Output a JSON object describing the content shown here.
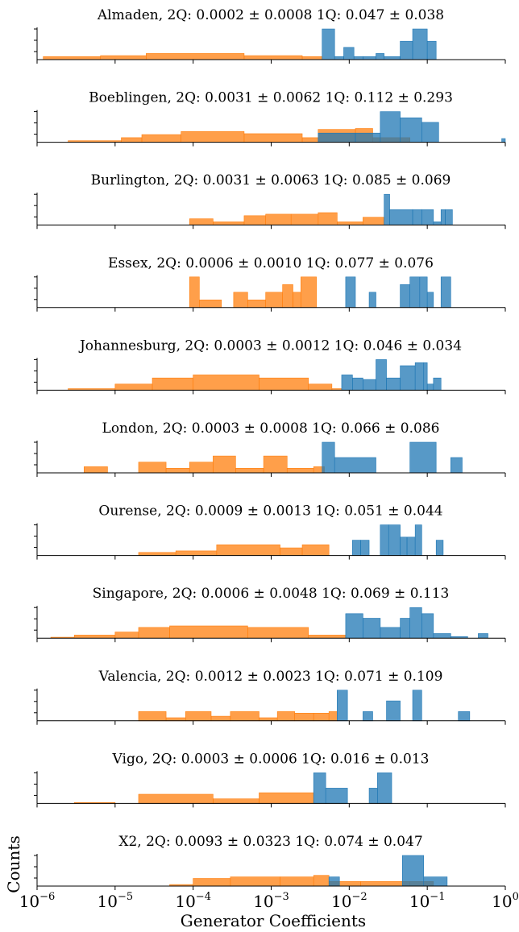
{
  "figure": {
    "xlabel": "Generator Coefficients",
    "ylabel": "Counts",
    "x_tick_labels": [
      {
        "value": 1e-06,
        "base": "10",
        "exp": "−6"
      },
      {
        "value": 1e-05,
        "base": "10",
        "exp": "−5"
      },
      {
        "value": 0.0001,
        "base": "10",
        "exp": "−4"
      },
      {
        "value": 0.001,
        "base": "10",
        "exp": "−3"
      },
      {
        "value": 0.01,
        "base": "10",
        "exp": "−2"
      },
      {
        "value": 0.1,
        "base": "10",
        "exp": "−1"
      },
      {
        "value": 1,
        "base": "10",
        "exp": "0"
      }
    ],
    "colors": {
      "two_qubit": "#ff7f0e",
      "one_qubit": "#1f77b4"
    }
  },
  "chart_data": [
    {
      "type": "bar",
      "title": "Almaden, 2Q: 0.0002 ± 0.0008 1Q: 0.047 ± 0.038",
      "xlim": [
        1e-06,
        1
      ],
      "xscale": "log",
      "series": [
        {
          "values": [
            [
              1.2e-06,
              6.5e-06,
              0.1
            ],
            [
              6.5e-06,
              2.5e-05,
              0.13
            ],
            [
              2.5e-05,
              0.00045,
              0.2
            ],
            [
              0.00045,
              0.0025,
              0.13
            ],
            [
              0.0025,
              0.0045,
              0.1
            ]
          ]
        },
        {
          "values": [
            [
              0.0045,
              0.0065,
              1.0
            ],
            [
              0.0065,
              0.0085,
              0.1
            ],
            [
              0.0085,
              0.0115,
              0.4
            ],
            [
              0.0115,
              0.015,
              0.1
            ],
            [
              0.015,
              0.022,
              0.1
            ],
            [
              0.022,
              0.028,
              0.2
            ],
            [
              0.028,
              0.045,
              0.1
            ],
            [
              0.045,
              0.065,
              0.6
            ],
            [
              0.065,
              0.1,
              1.0
            ],
            [
              0.1,
              0.13,
              0.6
            ]
          ]
        }
      ]
    },
    {
      "type": "bar",
      "title": "Boeblingen, 2Q: 0.0031 ± 0.0062 1Q: 0.112 ± 0.293",
      "xlim": [
        1e-06,
        1
      ],
      "xscale": "log",
      "series": [
        {
          "values": [
            [
              2.5e-06,
              1.2e-05,
              0.05
            ],
            [
              1.2e-05,
              2.2e-05,
              0.15
            ],
            [
              2.2e-05,
              7e-05,
              0.25
            ],
            [
              7e-05,
              0.00045,
              0.35
            ],
            [
              0.00045,
              0.0025,
              0.28
            ],
            [
              0.0025,
              0.004,
              0.15
            ],
            [
              0.004,
              0.012,
              0.42
            ],
            [
              0.012,
              0.02,
              0.45
            ],
            [
              0.02,
              0.06,
              0.15
            ]
          ]
        },
        {
          "values": [
            [
              0.004,
              0.012,
              0.3
            ],
            [
              0.012,
              0.025,
              0.3
            ],
            [
              0.025,
              0.045,
              1.0
            ],
            [
              0.045,
              0.085,
              0.8
            ],
            [
              0.085,
              0.14,
              0.65
            ],
            [
              0.9,
              1.0,
              0.12
            ]
          ]
        }
      ]
    },
    {
      "type": "bar",
      "title": "Burlington, 2Q: 0.0031 ± 0.0063 1Q: 0.085 ± 0.069",
      "xlim": [
        1e-06,
        1
      ],
      "xscale": "log",
      "series": [
        {
          "values": [
            [
              9e-05,
              0.00018,
              0.2
            ],
            [
              0.00018,
              0.00045,
              0.1
            ],
            [
              0.00045,
              0.00085,
              0.3
            ],
            [
              0.00085,
              0.0018,
              0.35
            ],
            [
              0.0018,
              0.004,
              0.35
            ],
            [
              0.004,
              0.007,
              0.4
            ],
            [
              0.007,
              0.015,
              0.1
            ],
            [
              0.015,
              0.028,
              0.25
            ]
          ]
        },
        {
          "values": [
            [
              0.028,
              0.033,
              1.0
            ],
            [
              0.033,
              0.065,
              0.5
            ],
            [
              0.065,
              0.085,
              0.5
            ],
            [
              0.085,
              0.12,
              0.5
            ],
            [
              0.12,
              0.15,
              0.1
            ],
            [
              0.15,
              0.17,
              0.5
            ],
            [
              0.17,
              0.21,
              0.5
            ]
          ]
        }
      ]
    },
    {
      "type": "bar",
      "title": "Essex, 2Q: 0.0006 ± 0.0010 1Q: 0.077 ± 0.076",
      "xlim": [
        1e-06,
        1
      ],
      "xscale": "log",
      "series": [
        {
          "values": [
            [
              9e-05,
              0.00012,
              1.0
            ],
            [
              0.00012,
              0.00023,
              0.25
            ],
            [
              0.00033,
              0.0005,
              0.5
            ],
            [
              0.0005,
              0.00085,
              0.25
            ],
            [
              0.00085,
              0.0014,
              0.5
            ],
            [
              0.0014,
              0.0019,
              0.75
            ],
            [
              0.0019,
              0.0024,
              0.5
            ],
            [
              0.0024,
              0.0038,
              1.0
            ]
          ]
        },
        {
          "values": [
            [
              0.009,
              0.012,
              1.0
            ],
            [
              0.018,
              0.022,
              0.5
            ],
            [
              0.045,
              0.06,
              0.75
            ],
            [
              0.06,
              0.08,
              1.0
            ],
            [
              0.08,
              0.1,
              1.0
            ],
            [
              0.1,
              0.12,
              0.5
            ],
            [
              0.15,
              0.2,
              1.0
            ]
          ]
        }
      ]
    },
    {
      "type": "bar",
      "title": "Johannesburg, 2Q: 0.0003 ± 0.0012 1Q: 0.046 ± 0.034",
      "xlim": [
        1e-06,
        1
      ],
      "xscale": "log",
      "series": [
        {
          "values": [
            [
              2.5e-06,
              1e-05,
              0.05
            ],
            [
              1e-05,
              3e-05,
              0.2
            ],
            [
              3e-05,
              0.0001,
              0.4
            ],
            [
              0.0001,
              0.0007,
              0.5
            ],
            [
              0.0007,
              0.003,
              0.4
            ],
            [
              0.003,
              0.006,
              0.2
            ],
            [
              0.006,
              0.008,
              0.05
            ]
          ]
        },
        {
          "values": [
            [
              0.008,
              0.011,
              0.5
            ],
            [
              0.011,
              0.015,
              0.4
            ],
            [
              0.015,
              0.022,
              0.35
            ],
            [
              0.022,
              0.03,
              1.0
            ],
            [
              0.03,
              0.045,
              0.4
            ],
            [
              0.045,
              0.07,
              0.8
            ],
            [
              0.07,
              0.09,
              0.9
            ],
            [
              0.09,
              0.1,
              0.9
            ],
            [
              0.1,
              0.12,
              0.2
            ],
            [
              0.12,
              0.15,
              0.4
            ]
          ]
        }
      ]
    },
    {
      "type": "bar",
      "title": "London, 2Q: 0.0003 ± 0.0008 1Q: 0.066 ± 0.086",
      "xlim": [
        1e-06,
        1
      ],
      "xscale": "log",
      "series": [
        {
          "values": [
            [
              4e-06,
              8e-06,
              0.2
            ],
            [
              2e-05,
              4.5e-05,
              0.35
            ],
            [
              4.5e-05,
              9e-05,
              0.15
            ],
            [
              9e-05,
              0.00018,
              0.35
            ],
            [
              0.00018,
              0.00035,
              0.55
            ],
            [
              0.00035,
              0.0008,
              0.15
            ],
            [
              0.0008,
              0.0016,
              0.55
            ],
            [
              0.0016,
              0.0035,
              0.15
            ],
            [
              0.0035,
              0.0048,
              0.2
            ]
          ]
        },
        {
          "values": [
            [
              0.0045,
              0.0065,
              1.0
            ],
            [
              0.0065,
              0.022,
              0.5
            ],
            [
              0.06,
              0.13,
              1.0
            ],
            [
              0.2,
              0.28,
              0.5
            ]
          ]
        }
      ]
    },
    {
      "type": "bar",
      "title": "Ourense, 2Q: 0.0009 ± 0.0013 1Q: 0.051 ± 0.044",
      "xlim": [
        1e-06,
        1
      ],
      "xscale": "log",
      "series": [
        {
          "values": [
            [
              2e-05,
              6e-05,
              0.1
            ],
            [
              6e-05,
              0.0002,
              0.15
            ],
            [
              0.0002,
              0.0013,
              0.35
            ],
            [
              0.0013,
              0.0025,
              0.25
            ],
            [
              0.0025,
              0.0055,
              0.35
            ]
          ]
        },
        {
          "values": [
            [
              0.011,
              0.014,
              0.5
            ],
            [
              0.014,
              0.018,
              0.5
            ],
            [
              0.025,
              0.032,
              1.0
            ],
            [
              0.032,
              0.045,
              1.0
            ],
            [
              0.045,
              0.055,
              0.6
            ],
            [
              0.055,
              0.07,
              0.6
            ],
            [
              0.07,
              0.085,
              1.0
            ],
            [
              0.13,
              0.16,
              0.5
            ]
          ]
        }
      ]
    },
    {
      "type": "bar",
      "title": "Singapore, 2Q: 0.0006 ± 0.0048 1Q: 0.069 ± 0.113",
      "xlim": [
        1e-06,
        1
      ],
      "xscale": "log",
      "series": [
        {
          "values": [
            [
              1.5e-06,
              3e-06,
              0.03
            ],
            [
              3e-06,
              1e-05,
              0.1
            ],
            [
              1e-05,
              2e-05,
              0.2
            ],
            [
              2e-05,
              5e-05,
              0.35
            ],
            [
              5e-05,
              0.0005,
              0.4
            ],
            [
              0.0005,
              0.003,
              0.35
            ],
            [
              0.003,
              0.009,
              0.1
            ]
          ]
        },
        {
          "values": [
            [
              0.009,
              0.015,
              0.8
            ],
            [
              0.015,
              0.025,
              0.65
            ],
            [
              0.025,
              0.045,
              0.35
            ],
            [
              0.045,
              0.06,
              0.65
            ],
            [
              0.06,
              0.085,
              1.0
            ],
            [
              0.085,
              0.12,
              0.8
            ],
            [
              0.12,
              0.2,
              0.15
            ],
            [
              0.2,
              0.33,
              0.05
            ],
            [
              0.45,
              0.6,
              0.15
            ]
          ]
        }
      ]
    },
    {
      "type": "bar",
      "title": "Valencia, 2Q: 0.0012 ± 0.0023 1Q: 0.071 ± 0.109",
      "xlim": [
        1e-06,
        1
      ],
      "xscale": "log",
      "series": [
        {
          "values": [
            [
              2e-05,
              4.5e-05,
              0.3
            ],
            [
              4.5e-05,
              8e-05,
              0.1
            ],
            [
              8e-05,
              0.00017,
              0.3
            ],
            [
              0.00017,
              0.0003,
              0.15
            ],
            [
              0.0003,
              0.0007,
              0.3
            ],
            [
              0.0007,
              0.0012,
              0.1
            ],
            [
              0.0012,
              0.002,
              0.3
            ],
            [
              0.002,
              0.0035,
              0.25
            ],
            [
              0.0035,
              0.0055,
              0.25
            ],
            [
              0.0055,
              0.007,
              0.3
            ]
          ]
        },
        {
          "values": [
            [
              0.007,
              0.0095,
              1.0
            ],
            [
              0.015,
              0.02,
              0.3
            ],
            [
              0.03,
              0.045,
              0.65
            ],
            [
              0.065,
              0.085,
              1.0
            ],
            [
              0.25,
              0.35,
              0.3
            ]
          ]
        }
      ]
    },
    {
      "type": "bar",
      "title": "Vigo, 2Q: 0.0003 ± 0.0006 1Q: 0.016 ± 0.013",
      "xlim": [
        1e-06,
        1
      ],
      "xscale": "log",
      "series": [
        {
          "values": [
            [
              3e-06,
              1e-05,
              0.03
            ],
            [
              2e-05,
              0.00018,
              0.3
            ],
            [
              0.00018,
              0.0007,
              0.15
            ],
            [
              0.0007,
              0.0035,
              0.35
            ]
          ]
        },
        {
          "values": [
            [
              0.0035,
              0.005,
              1.0
            ],
            [
              0.005,
              0.0095,
              0.5
            ],
            [
              0.018,
              0.023,
              0.5
            ],
            [
              0.023,
              0.035,
              1.0
            ]
          ]
        }
      ]
    },
    {
      "type": "bar",
      "title": "X2, 2Q: 0.0093 ± 0.0323 1Q: 0.074 ± 0.047",
      "xlim": [
        1e-06,
        1
      ],
      "xscale": "log",
      "series": [
        {
          "values": [
            [
              5e-05,
              0.0001,
              0.05
            ],
            [
              0.0001,
              0.0003,
              0.25
            ],
            [
              0.0003,
              0.0013,
              0.3
            ],
            [
              0.0013,
              0.0035,
              0.3
            ],
            [
              0.0035,
              0.0055,
              0.35
            ],
            [
              0.0055,
              0.014,
              0.15
            ],
            [
              0.014,
              0.06,
              0.15
            ],
            [
              0.06,
              0.12,
              0.15
            ]
          ]
        },
        {
          "values": [
            [
              0.0055,
              0.0075,
              0.3
            ],
            [
              0.048,
              0.09,
              1.0
            ],
            [
              0.09,
              0.18,
              0.3
            ]
          ]
        }
      ]
    }
  ]
}
